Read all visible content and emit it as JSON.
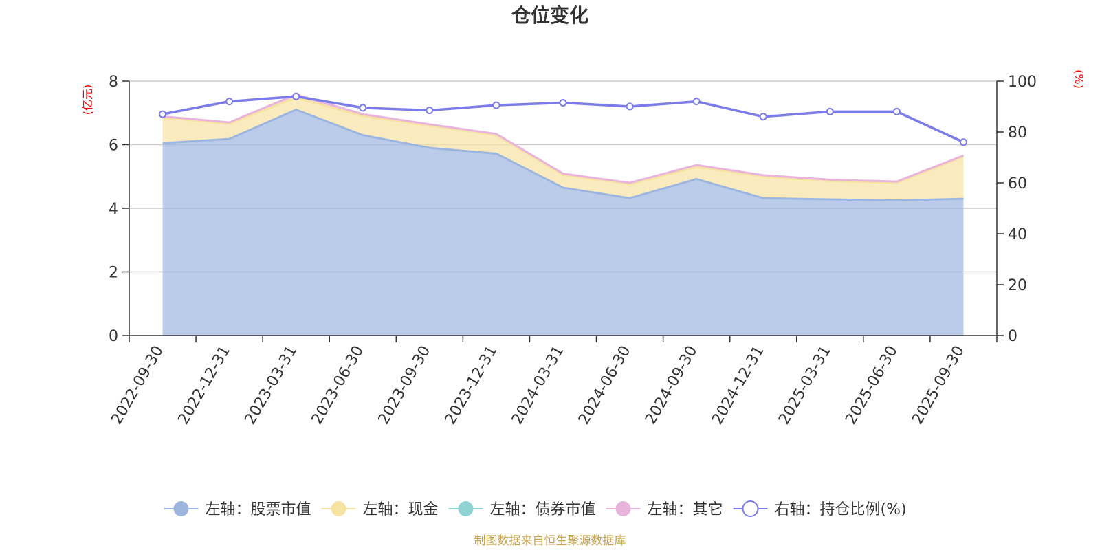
{
  "chart_data": {
    "type": "area",
    "title": "仓位变化",
    "left_axis_unit": "(亿元)",
    "right_axis_unit": "(%)",
    "left_ylim": [
      0,
      8
    ],
    "left_ticks": [
      0,
      2,
      4,
      6,
      8
    ],
    "right_ylim": [
      0,
      100
    ],
    "right_ticks": [
      0,
      20,
      40,
      60,
      80,
      100
    ],
    "categories": [
      "2022-09-30",
      "2022-12-31",
      "2023-03-31",
      "2023-06-30",
      "2023-09-30",
      "2023-12-31",
      "2024-03-31",
      "2024-06-30",
      "2024-09-30",
      "2024-12-31",
      "2025-03-31",
      "2025-06-30",
      "2025-09-30"
    ],
    "series": [
      {
        "name": "左轴：股票市值",
        "axis": "left",
        "stack": true,
        "color": "#9db6e0",
        "values": [
          6.05,
          6.18,
          7.1,
          6.3,
          5.9,
          5.72,
          4.65,
          4.32,
          4.92,
          4.32,
          4.28,
          4.25,
          4.3
        ]
      },
      {
        "name": "左轴：现金",
        "axis": "left",
        "stack": true,
        "color": "#f6e3a1",
        "values": [
          0.8,
          0.48,
          0.38,
          0.6,
          0.7,
          0.58,
          0.4,
          0.44,
          0.38,
          0.68,
          0.58,
          0.55,
          1.32
        ]
      },
      {
        "name": "左轴：债券市值",
        "axis": "left",
        "stack": true,
        "color": "#8fd3d3",
        "values": [
          0,
          0,
          0,
          0,
          0,
          0,
          0,
          0,
          0,
          0,
          0,
          0,
          0
        ]
      },
      {
        "name": "左轴：其它",
        "axis": "left",
        "stack": true,
        "color": "#e9b4dc",
        "values": [
          0.04,
          0.04,
          0.1,
          0.06,
          0.04,
          0.04,
          0.04,
          0.04,
          0.06,
          0.04,
          0.04,
          0.04,
          0.04
        ]
      },
      {
        "name": "右轴：持仓比例(%)",
        "axis": "right",
        "stack": false,
        "color": "#7b7bea",
        "values": [
          87,
          92,
          94,
          89.5,
          88.5,
          90.5,
          91.5,
          90,
          92,
          86,
          88,
          88,
          76
        ]
      }
    ],
    "legend_position": "bottom",
    "source": "制图数据来自恒生聚源数据库"
  }
}
